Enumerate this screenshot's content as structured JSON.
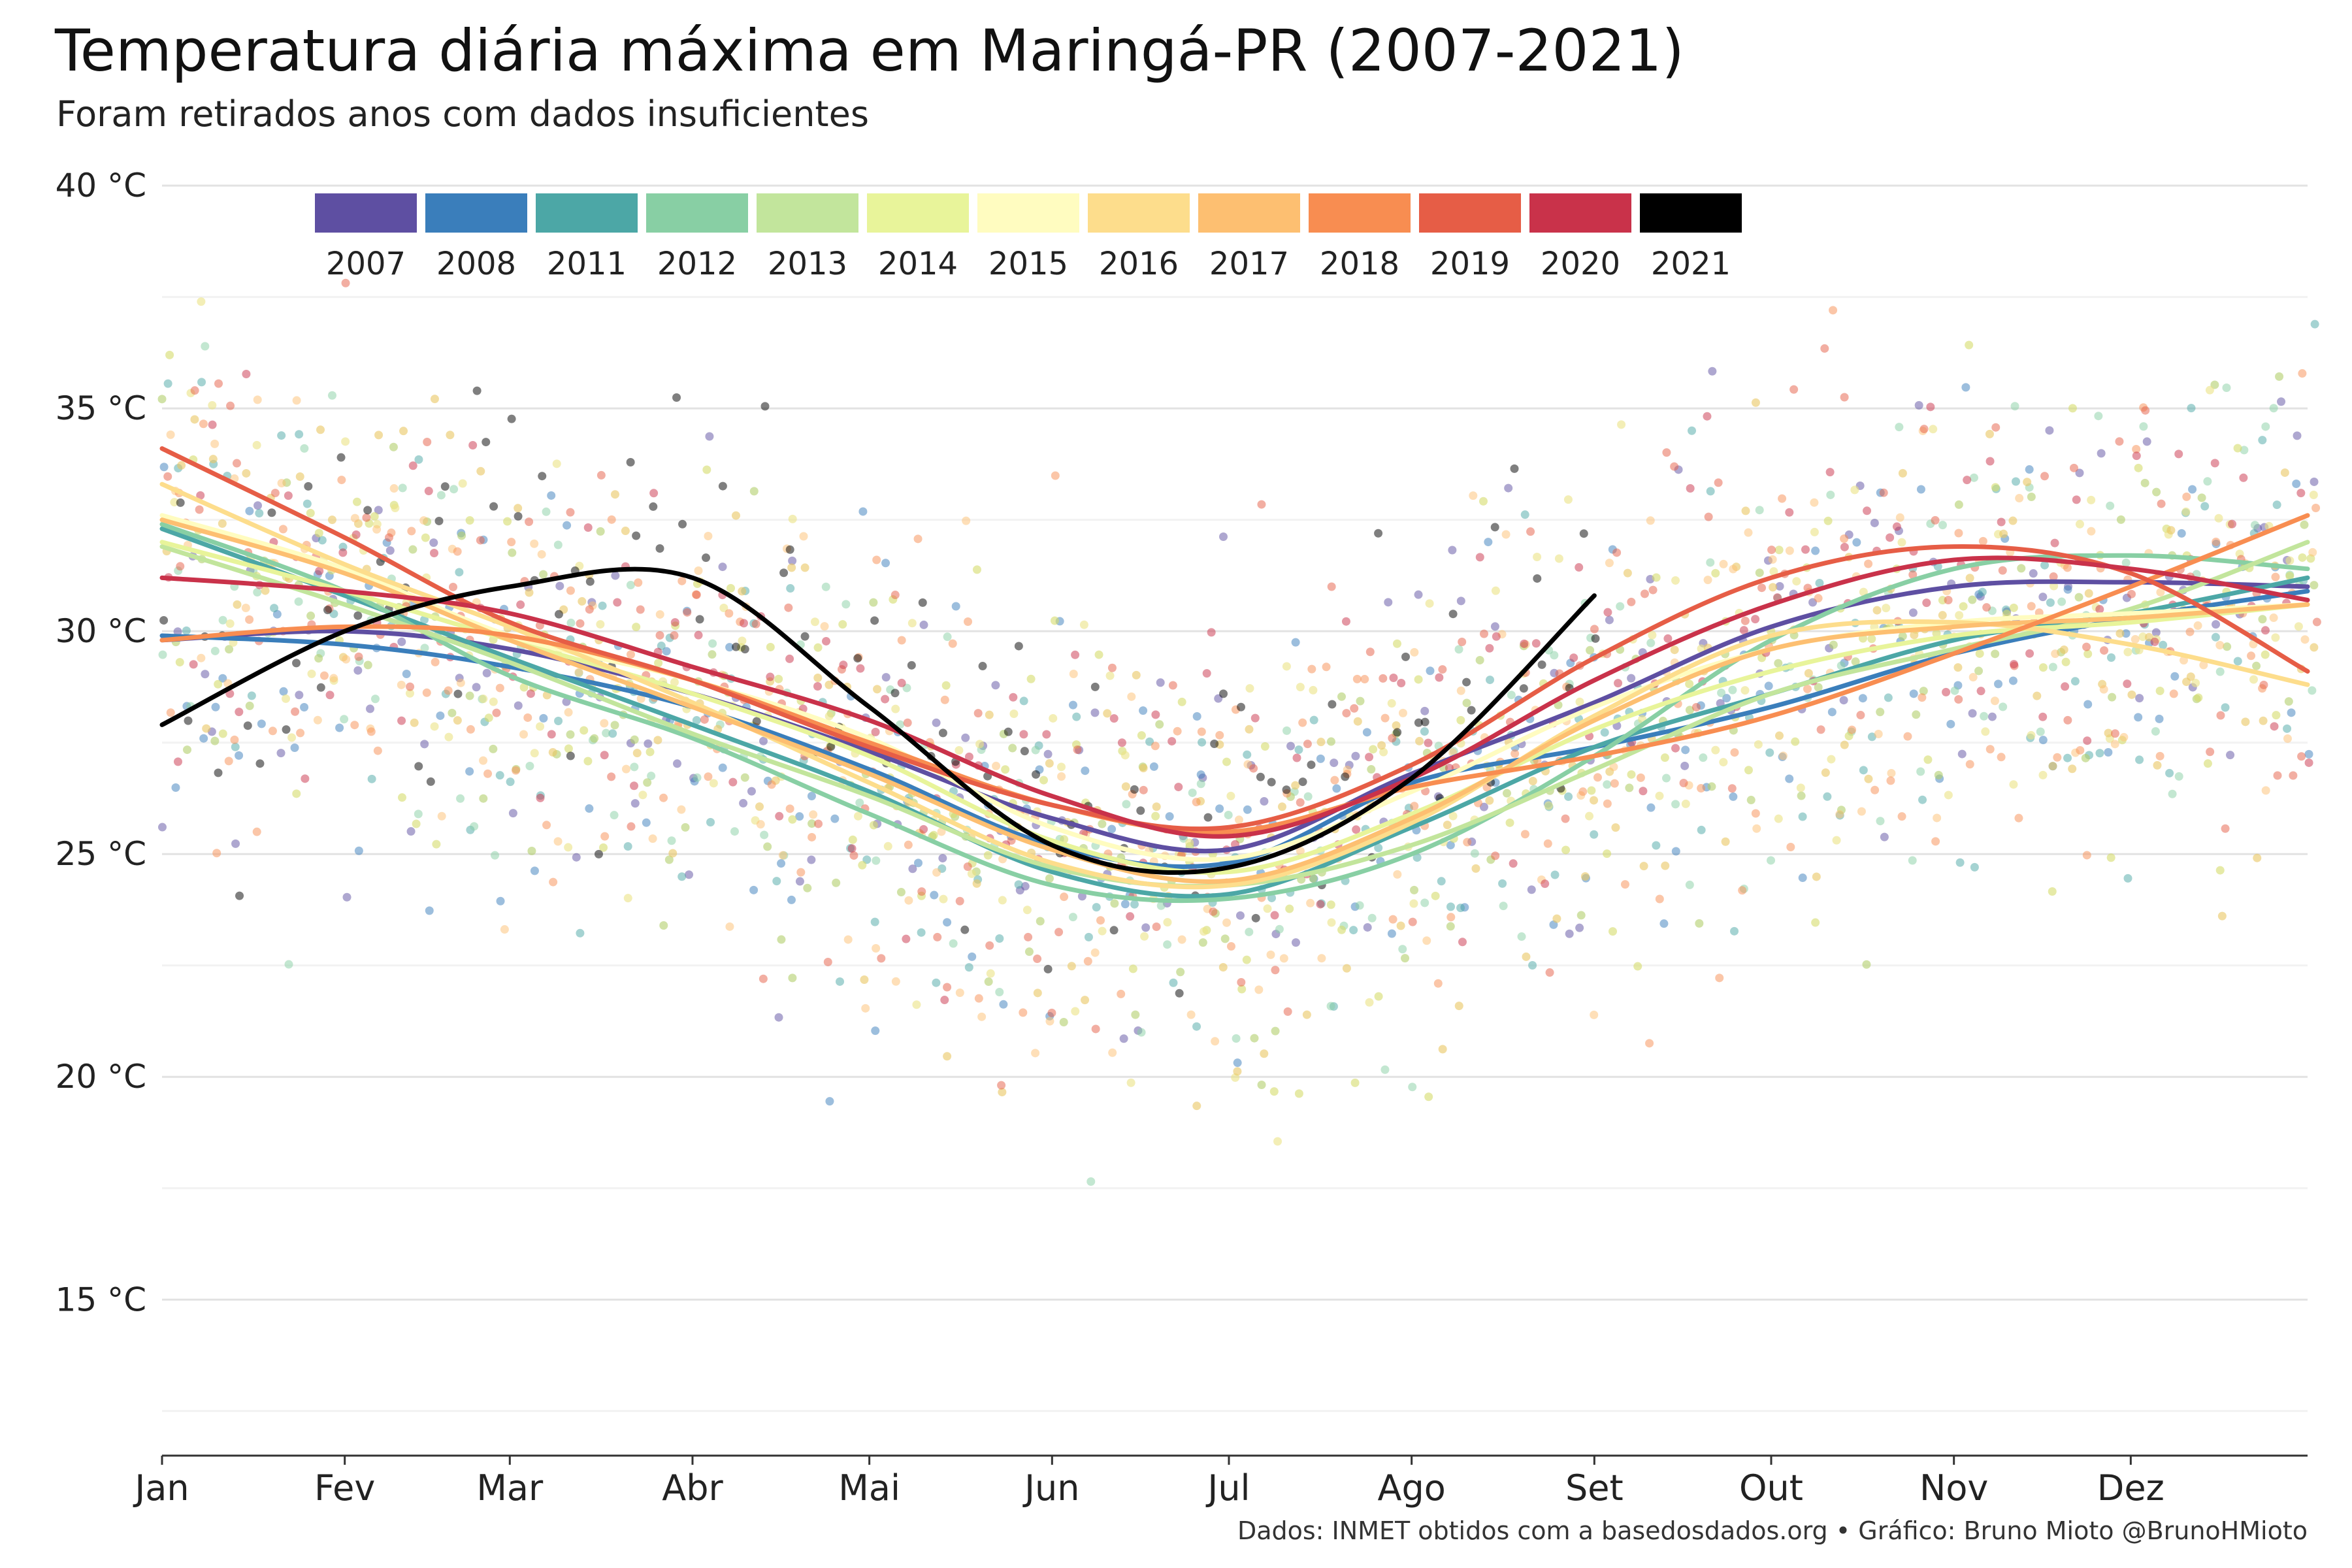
{
  "title": "Temperatura diária máxima em Maringá-PR (2007-2021)",
  "subtitle": "Foram retirados anos com dados insuficientes",
  "caption": "Dados: INMET obtidos com a basedosdados.org • Gráfico: Bruno Mioto @BrunoHMioto",
  "chart_data": {
    "type": "scatter",
    "xlabel": "",
    "ylabel": "",
    "x_range": [
      "01-01",
      "12-31"
    ],
    "ylim": [
      11.5,
      40.5
    ],
    "y_ticks": [
      15,
      20,
      25,
      30,
      35,
      40
    ],
    "y_tick_labels": [
      "15 °C",
      "20 °C",
      "25 °C",
      "30 °C",
      "35 °C",
      "40 °C"
    ],
    "x_ticks": [
      "01-01",
      "02-01",
      "03-01",
      "04-01",
      "05-01",
      "06-01",
      "07-01",
      "08-01",
      "09-01",
      "10-01",
      "11-01",
      "12-01"
    ],
    "x_tick_labels": [
      "Jan",
      "Fev",
      "Mar",
      "Abr",
      "Mai",
      "Jun",
      "Jul",
      "Ago",
      "Set",
      "Out",
      "Nov",
      "Dez"
    ],
    "grid": true,
    "legend_position": "top",
    "overlay": "smoothed trend line per year over daily points",
    "series": [
      {
        "name": "2007",
        "color": "#5E4FA2",
        "smooth": [
          [
            "01-01",
            29.8
          ],
          [
            "02-01",
            30.0
          ],
          [
            "03-01",
            29.6
          ],
          [
            "04-01",
            28.6
          ],
          [
            "05-01",
            27.3
          ],
          [
            "06-01",
            25.8
          ],
          [
            "07-01",
            25.1
          ],
          [
            "08-01",
            26.8
          ],
          [
            "09-01",
            28.4
          ],
          [
            "10-01",
            30.1
          ],
          [
            "11-01",
            31.0
          ],
          [
            "12-01",
            31.1
          ],
          [
            "12-31",
            31.0
          ]
        ]
      },
      {
        "name": "2008",
        "color": "#3A7EBB",
        "smooth": [
          [
            "01-01",
            29.9
          ],
          [
            "02-01",
            29.7
          ],
          [
            "03-01",
            29.2
          ],
          [
            "04-01",
            28.3
          ],
          [
            "05-01",
            26.9
          ],
          [
            "06-01",
            25.2
          ],
          [
            "07-01",
            24.8
          ],
          [
            "08-01",
            26.6
          ],
          [
            "09-01",
            27.4
          ],
          [
            "10-01",
            28.3
          ],
          [
            "11-01",
            29.5
          ],
          [
            "12-01",
            30.3
          ],
          [
            "12-31",
            30.9
          ]
        ]
      },
      {
        "name": "2011",
        "color": "#4CA7A6",
        "smooth": [
          [
            "01-01",
            32.3
          ],
          [
            "02-01",
            30.8
          ],
          [
            "03-01",
            29.4
          ],
          [
            "04-01",
            27.9
          ],
          [
            "05-01",
            26.4
          ],
          [
            "06-01",
            24.6
          ],
          [
            "07-01",
            24.1
          ],
          [
            "08-01",
            25.6
          ],
          [
            "09-01",
            27.4
          ],
          [
            "10-01",
            28.6
          ],
          [
            "11-01",
            29.8
          ],
          [
            "12-01",
            30.4
          ],
          [
            "12-31",
            31.2
          ]
        ]
      },
      {
        "name": "2012",
        "color": "#88CFA4",
        "smooth": [
          [
            "01-01",
            32.4
          ],
          [
            "02-01",
            30.9
          ],
          [
            "03-01",
            29.0
          ],
          [
            "04-01",
            27.6
          ],
          [
            "05-01",
            25.9
          ],
          [
            "06-01",
            24.3
          ],
          [
            "07-01",
            24.0
          ],
          [
            "08-01",
            25.0
          ],
          [
            "09-01",
            27.2
          ],
          [
            "10-01",
            29.8
          ],
          [
            "11-01",
            31.4
          ],
          [
            "12-01",
            31.7
          ],
          [
            "12-31",
            31.4
          ]
        ]
      },
      {
        "name": "2013",
        "color": "#C2E59C",
        "smooth": [
          [
            "01-01",
            31.9
          ],
          [
            "02-01",
            30.6
          ],
          [
            "03-01",
            29.3
          ],
          [
            "04-01",
            27.7
          ],
          [
            "05-01",
            26.3
          ],
          [
            "06-01",
            24.7
          ],
          [
            "07-01",
            24.3
          ],
          [
            "08-01",
            25.2
          ],
          [
            "09-01",
            26.9
          ],
          [
            "10-01",
            28.6
          ],
          [
            "11-01",
            29.6
          ],
          [
            "12-01",
            30.5
          ],
          [
            "12-31",
            32.0
          ]
        ]
      },
      {
        "name": "2014",
        "color": "#E8F49A",
        "smooth": [
          [
            "01-01",
            32.0
          ],
          [
            "02-01",
            30.9
          ],
          [
            "03-01",
            29.8
          ],
          [
            "04-01",
            28.6
          ],
          [
            "05-01",
            27.2
          ],
          [
            "06-01",
            25.3
          ],
          [
            "07-01",
            24.6
          ],
          [
            "08-01",
            25.9
          ],
          [
            "09-01",
            27.8
          ],
          [
            "10-01",
            29.1
          ],
          [
            "11-01",
            29.9
          ],
          [
            "12-01",
            30.2
          ],
          [
            "12-31",
            30.6
          ]
        ]
      },
      {
        "name": "2015",
        "color": "#FFFCC0",
        "smooth": [
          [
            "01-01",
            32.6
          ],
          [
            "02-01",
            31.4
          ],
          [
            "03-01",
            29.9
          ],
          [
            "04-01",
            28.9
          ],
          [
            "05-01",
            27.6
          ],
          [
            "06-01",
            25.6
          ],
          [
            "07-01",
            24.9
          ],
          [
            "08-01",
            26.4
          ],
          [
            "09-01",
            28.3
          ],
          [
            "10-01",
            29.6
          ],
          [
            "11-01",
            30.2
          ],
          [
            "12-01",
            30.4
          ],
          [
            "12-31",
            30.6
          ]
        ]
      },
      {
        "name": "2016",
        "color": "#FDDD8C",
        "smooth": [
          [
            "01-01",
            33.3
          ],
          [
            "02-01",
            31.5
          ],
          [
            "03-01",
            30.1
          ],
          [
            "04-01",
            28.4
          ],
          [
            "05-01",
            26.6
          ],
          [
            "06-01",
            24.8
          ],
          [
            "07-01",
            24.3
          ],
          [
            "08-01",
            25.7
          ],
          [
            "09-01",
            28.1
          ],
          [
            "10-01",
            29.9
          ],
          [
            "11-01",
            30.2
          ],
          [
            "12-01",
            29.7
          ],
          [
            "12-31",
            28.8
          ]
        ]
      },
      {
        "name": "2017",
        "color": "#FDBF71",
        "smooth": [
          [
            "01-01",
            32.5
          ],
          [
            "02-01",
            31.3
          ],
          [
            "03-01",
            29.8
          ],
          [
            "04-01",
            28.3
          ],
          [
            "05-01",
            26.8
          ],
          [
            "06-01",
            25.1
          ],
          [
            "07-01",
            24.4
          ],
          [
            "08-01",
            25.8
          ],
          [
            "09-01",
            28.0
          ],
          [
            "10-01",
            29.6
          ],
          [
            "11-01",
            30.1
          ],
          [
            "12-01",
            30.3
          ],
          [
            "12-31",
            30.6
          ]
        ]
      },
      {
        "name": "2018",
        "color": "#F88D51",
        "smooth": [
          [
            "01-01",
            29.8
          ],
          [
            "02-01",
            30.1
          ],
          [
            "03-01",
            29.9
          ],
          [
            "04-01",
            28.9
          ],
          [
            "05-01",
            27.5
          ],
          [
            "06-01",
            26.1
          ],
          [
            "07-01",
            25.5
          ],
          [
            "08-01",
            26.5
          ],
          [
            "09-01",
            27.2
          ],
          [
            "10-01",
            28.1
          ],
          [
            "11-01",
            29.5
          ],
          [
            "12-01",
            31.0
          ],
          [
            "12-31",
            32.6
          ]
        ]
      },
      {
        "name": "2019",
        "color": "#E65D46",
        "smooth": [
          [
            "01-01",
            34.1
          ],
          [
            "02-01",
            32.1
          ],
          [
            "03-01",
            30.2
          ],
          [
            "04-01",
            28.9
          ],
          [
            "05-01",
            27.4
          ],
          [
            "06-01",
            26.1
          ],
          [
            "07-01",
            25.6
          ],
          [
            "08-01",
            27.0
          ],
          [
            "09-01",
            29.4
          ],
          [
            "10-01",
            31.2
          ],
          [
            "11-01",
            31.9
          ],
          [
            "12-01",
            31.3
          ],
          [
            "12-31",
            29.1
          ]
        ]
      },
      {
        "name": "2020",
        "color": "#C9324A",
        "smooth": [
          [
            "01-01",
            31.2
          ],
          [
            "02-01",
            30.9
          ],
          [
            "03-01",
            30.4
          ],
          [
            "04-01",
            29.2
          ],
          [
            "05-01",
            28.0
          ],
          [
            "06-01",
            26.3
          ],
          [
            "07-01",
            25.4
          ],
          [
            "08-01",
            26.7
          ],
          [
            "09-01",
            28.9
          ],
          [
            "10-01",
            30.6
          ],
          [
            "11-01",
            31.6
          ],
          [
            "12-01",
            31.4
          ],
          [
            "12-31",
            30.7
          ]
        ]
      },
      {
        "name": "2021",
        "color": "#000000",
        "smooth": [
          [
            "01-01",
            27.9
          ],
          [
            "02-01",
            30.0
          ],
          [
            "03-01",
            31.0
          ],
          [
            "04-01",
            31.2
          ],
          [
            "05-01",
            28.3
          ],
          [
            "06-01",
            25.2
          ],
          [
            "07-01",
            24.7
          ],
          [
            "08-01",
            26.7
          ],
          [
            "09-01",
            30.8
          ]
        ]
      }
    ]
  }
}
